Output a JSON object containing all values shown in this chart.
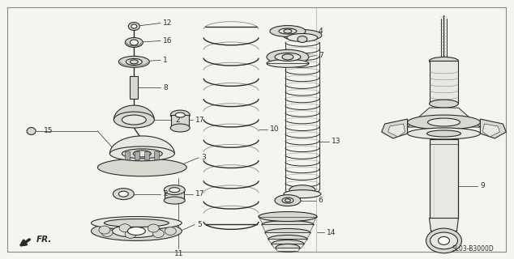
{
  "bg_color": "#f5f5f0",
  "line_color": "#2a2a2a",
  "diagram_code": "SL03-B3000D",
  "fig_w": 6.34,
  "fig_h": 3.2,
  "dpi": 100
}
